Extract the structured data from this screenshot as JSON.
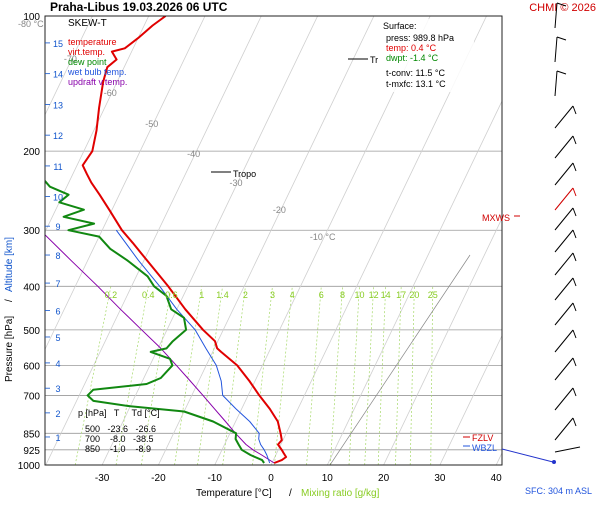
{
  "header": {
    "title": "Praha-Libus   19.03.2026 06 UTC",
    "copyright": "CHMI © 2026",
    "copyright_color": "#d00000"
  },
  "legend": {
    "chart_name": "SKEW-T",
    "items": [
      {
        "label": "temperature",
        "color": "#e00000"
      },
      {
        "label": "virt.temp.",
        "color": "#e00000"
      },
      {
        "label": "dew point",
        "color": "#008800"
      },
      {
        "label": "wet bulb temp.",
        "color": "#2255dd"
      },
      {
        "label": "updraft v.temp.",
        "color": "#8800aa"
      }
    ]
  },
  "surface": {
    "heading": "Surface:",
    "press": "press: 989.8 hPa",
    "temp": "temp: 0.4 °C",
    "dwpt": "dwpt: -1.4 °C",
    "tconv": "t-conv: 11.5 °C",
    "tmxfc": "t-mxfc: 13.1 °C"
  },
  "markers": {
    "tr": "Tr",
    "tropo": "Tropo",
    "mxws": "MXWS",
    "ezlv": "FZLV",
    "wbzl": "WBZL",
    "sfc": "SFC: 304 m ASL"
  },
  "table": {
    "header": "p [hPa]   T     Td [°C]",
    "rows": [
      "500   -23.6   -26.6",
      "700    -8.0   -38.5",
      "850    -1.0    -8.9"
    ]
  },
  "axes": {
    "xlabel_left": "Temperature [°C]",
    "xlabel_sep": "/",
    "xlabel_right": "Mixing ratio [g/kg]",
    "ylabel_left": "Pressure [hPa]",
    "ylabel_sep": "/",
    "ylabel_right": "Altitude [km]"
  },
  "chart_data": {
    "type": "line",
    "title": "SKEW-T",
    "xlabel": "Temperature [°C]",
    "ylabel": "Pressure [hPa]",
    "x_ticks": [
      -30,
      -20,
      -10,
      0,
      10,
      20,
      30,
      40
    ],
    "p_ticks": [
      100,
      200,
      300,
      400,
      500,
      600,
      700,
      850,
      925,
      1000
    ],
    "km_ticks": [
      1,
      2,
      3,
      4,
      5,
      6,
      7,
      8,
      9,
      10,
      11,
      12,
      13,
      14,
      15,
      16
    ],
    "isotherm_labels": [
      {
        "t": -80,
        "text": "-80 °C"
      },
      {
        "t": -70,
        "text": "-70"
      },
      {
        "t": -60,
        "text": "-60"
      },
      {
        "t": -50,
        "text": "-50"
      },
      {
        "t": -40,
        "text": "-40"
      },
      {
        "t": -30,
        "text": "-30"
      },
      {
        "t": -20,
        "text": "-20"
      },
      {
        "t": -10,
        "text": "-10 °C"
      }
    ],
    "mixing_ratio_labels": [
      "0.2",
      "0.4",
      "0.6",
      "1",
      "1.4",
      "2",
      "3",
      "4",
      "6",
      "8",
      "10",
      "12",
      "14",
      "17",
      "20",
      "25"
    ],
    "mixing_ratio_colors": {
      "text": "#88cc22",
      "lines": "#a6d96a"
    },
    "series": [
      {
        "name": "temperature",
        "color": "#e00000",
        "points": [
          [
            989.8,
            0.4
          ],
          [
            975,
            1.5
          ],
          [
            960,
            2.0
          ],
          [
            940,
            1.2
          ],
          [
            925,
            0.6
          ],
          [
            900,
            -0.5
          ],
          [
            880,
            -0.2
          ],
          [
            850,
            -1.0
          ],
          [
            800,
            -2.5
          ],
          [
            750,
            -5.0
          ],
          [
            700,
            -8.0
          ],
          [
            650,
            -11.0
          ],
          [
            600,
            -14.5
          ],
          [
            560,
            -18.5
          ],
          [
            550,
            -19.5
          ],
          [
            530,
            -20.5
          ],
          [
            500,
            -23.6
          ],
          [
            450,
            -28.5
          ],
          [
            400,
            -33.5
          ],
          [
            350,
            -39.5
          ],
          [
            320,
            -43.5
          ],
          [
            300,
            -46.5
          ],
          [
            270,
            -50.5
          ],
          [
            250,
            -53.5
          ],
          [
            235,
            -56.0
          ],
          [
            225,
            -57.5
          ],
          [
            215,
            -59.0
          ],
          [
            200,
            -58.5
          ],
          [
            180,
            -59.5
          ],
          [
            160,
            -61.0
          ],
          [
            140,
            -62.5
          ],
          [
            130,
            -63.0
          ],
          [
            125,
            -62.0
          ],
          [
            120,
            -63.5
          ],
          [
            118,
            -61.5
          ],
          [
            112,
            -60.0
          ],
          [
            105,
            -58.5
          ],
          [
            100,
            -57.0
          ]
        ]
      },
      {
        "name": "dew point",
        "color": "#118811",
        "points": [
          [
            989.8,
            -1.4
          ],
          [
            975,
            -2.0
          ],
          [
            950,
            -4.5
          ],
          [
            925,
            -6.5
          ],
          [
            900,
            -7.5
          ],
          [
            875,
            -8.5
          ],
          [
            850,
            -8.9
          ],
          [
            800,
            -14.0
          ],
          [
            760,
            -20.0
          ],
          [
            740,
            -30.0
          ],
          [
            720,
            -37.0
          ],
          [
            700,
            -38.5
          ],
          [
            680,
            -38.0
          ],
          [
            660,
            -29.0
          ],
          [
            640,
            -27.0
          ],
          [
            620,
            -26.5
          ],
          [
            600,
            -26.0
          ],
          [
            580,
            -27.0
          ],
          [
            560,
            -31.0
          ],
          [
            550,
            -28.5
          ],
          [
            530,
            -28.0
          ],
          [
            500,
            -26.6
          ],
          [
            470,
            -28.0
          ],
          [
            450,
            -31.0
          ],
          [
            420,
            -33.0
          ],
          [
            400,
            -36.0
          ],
          [
            380,
            -38.0
          ],
          [
            350,
            -43.0
          ],
          [
            330,
            -47.0
          ],
          [
            310,
            -50.0
          ],
          [
            300,
            -56.0
          ],
          [
            290,
            -52.0
          ],
          [
            280,
            -58.0
          ],
          [
            270,
            -55.0
          ],
          [
            260,
            -60.0
          ],
          [
            250,
            -59.0
          ],
          [
            240,
            -63.0
          ],
          [
            225,
            -66.0
          ],
          [
            210,
            -69.0
          ],
          [
            200,
            -71.0
          ],
          [
            180,
            -76.0
          ],
          [
            160,
            -80.0
          ],
          [
            140,
            -84.0
          ],
          [
            120,
            -87.0
          ],
          [
            100,
            -90.0
          ]
        ]
      },
      {
        "name": "wet bulb temp.",
        "color": "#2255dd",
        "points": [
          [
            989.8,
            -0.4
          ],
          [
            950,
            -1.6
          ],
          [
            925,
            -2.5
          ],
          [
            900,
            -3.6
          ],
          [
            875,
            -4.4
          ],
          [
            850,
            -4.8
          ],
          [
            800,
            -7.5
          ],
          [
            750,
            -11.0
          ],
          [
            700,
            -14.5
          ],
          [
            650,
            -16.0
          ],
          [
            600,
            -18.2
          ],
          [
            550,
            -21.5
          ],
          [
            500,
            -25.0
          ],
          [
            450,
            -30.0
          ],
          [
            400,
            -35.0
          ],
          [
            350,
            -41.0
          ],
          [
            300,
            -47.5
          ]
        ]
      },
      {
        "name": "updraft v.temp.",
        "color": "#8800aa",
        "points": [
          [
            989.8,
            0.4
          ],
          [
            950,
            -2.5
          ],
          [
            925,
            -4.5
          ],
          [
            900,
            -6.2
          ],
          [
            850,
            -9.0
          ],
          [
            800,
            -11.8
          ],
          [
            750,
            -14.8
          ],
          [
            700,
            -18.0
          ],
          [
            650,
            -21.5
          ],
          [
            600,
            -25.3
          ],
          [
            550,
            -29.5
          ],
          [
            500,
            -34.5
          ],
          [
            450,
            -40.0
          ],
          [
            400,
            -46.0
          ],
          [
            350,
            -53.0
          ],
          [
            300,
            -61.0
          ],
          [
            250,
            -70.0
          ],
          [
            200,
            -80.0
          ],
          [
            150,
            -92.0
          ],
          [
            120,
            -100.0
          ]
        ]
      }
    ],
    "ylim": [
      1000,
      100
    ],
    "xlim": [
      -35,
      45
    ],
    "grid": true
  },
  "wind_barbs": {
    "color": "#000000",
    "highlight_color": "#d00000"
  }
}
